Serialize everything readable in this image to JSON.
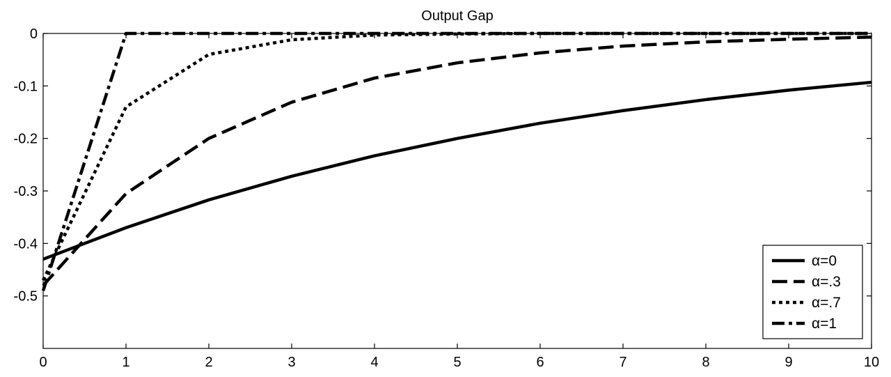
{
  "chart_data": {
    "type": "line",
    "title": "Output Gap",
    "xlabel": "",
    "ylabel": "",
    "xlim": [
      0,
      10
    ],
    "ylim": [
      -0.6,
      0
    ],
    "x_ticks": [
      0,
      1,
      2,
      3,
      4,
      5,
      6,
      7,
      8,
      9,
      10
    ],
    "x_tick_labels": [
      "0",
      "1",
      "2",
      "3",
      "4",
      "5",
      "6",
      "7",
      "8",
      "9",
      "10"
    ],
    "y_ticks": [
      0,
      -0.1,
      -0.2,
      -0.3,
      -0.4,
      -0.5
    ],
    "y_tick_labels": [
      "0",
      "-0.1",
      "-0.2",
      "-0.3",
      "-0.4",
      "-0.5"
    ],
    "grid": false,
    "legend_position": "bottom-right",
    "x": [
      0,
      1,
      2,
      3,
      4,
      5,
      6,
      7,
      8,
      9,
      10
    ],
    "series": [
      {
        "name": "α=0",
        "style": "solid",
        "values": [
          -0.43,
          -0.37,
          -0.317,
          -0.272,
          -0.233,
          -0.2,
          -0.171,
          -0.147,
          -0.126,
          -0.108,
          -0.093
        ]
      },
      {
        "name": "α=.3",
        "style": "dashed",
        "values": [
          -0.48,
          -0.305,
          -0.2,
          -0.131,
          -0.085,
          -0.056,
          -0.037,
          -0.024,
          -0.016,
          -0.011,
          -0.007
        ]
      },
      {
        "name": "α=.7",
        "style": "dotted",
        "values": [
          -0.47,
          -0.14,
          -0.04,
          -0.012,
          -0.003,
          -0.001,
          0,
          0,
          0,
          0,
          0
        ]
      },
      {
        "name": "α=1",
        "style": "dashdot",
        "values": [
          -0.49,
          0,
          0,
          0,
          0,
          0,
          0,
          0,
          0,
          0,
          0
        ]
      }
    ],
    "colors": {
      "lines": "#000000",
      "axes": "#000000",
      "background": "#ffffff"
    }
  }
}
